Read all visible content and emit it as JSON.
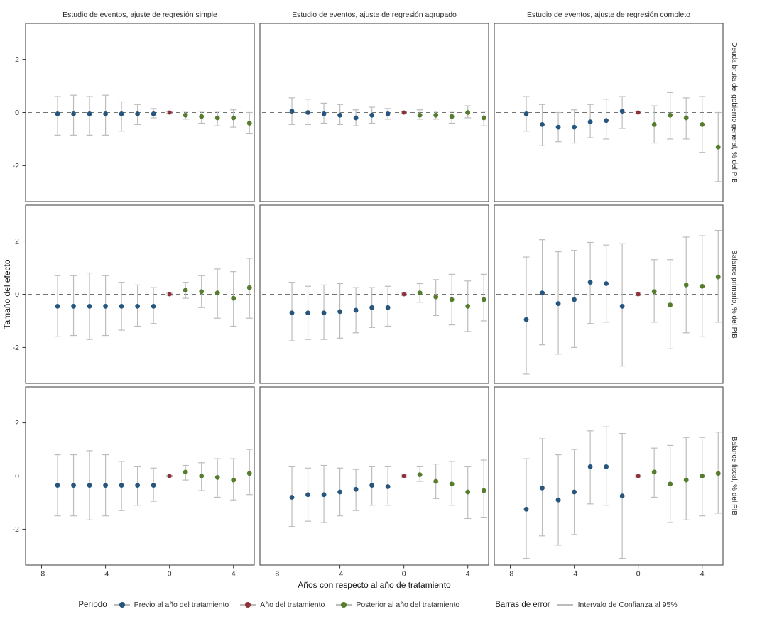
{
  "figure": {
    "y_axis_label": "Tamaño del efecto",
    "x_axis_label": "Años con respecto al año de tratamiento",
    "col_titles": [
      "Estudio de eventos, ajuste de regresión simple",
      "Estudio de eventos, ajuste de regresión agrupado",
      "Estudio de eventos, ajuste de regresión completo"
    ],
    "row_labels": [
      "Deuda bruta del gobierno general, % del PIB",
      "Balance primario, % del PIB",
      "Balance fiscal, % del PIB"
    ],
    "x_ticks": [
      -8,
      -4,
      0,
      4
    ],
    "y_ticks": [
      -2,
      0,
      2
    ]
  },
  "legend": {
    "period_title": "Período",
    "items": [
      {
        "label": "Previo al año del tratamiento",
        "color": "#26567e"
      },
      {
        "label": "Año del tratamiento",
        "color": "#8f3138"
      },
      {
        "label": "Posterior al año del tratamiento",
        "color": "#567d2e"
      }
    ],
    "errorbar_title": "Barras de error",
    "errorbar_label": "Intervalo de Confianza al 95%",
    "errorbar_color": "#bcbcbc"
  },
  "colors": {
    "previo": "#26567e",
    "tratamiento": "#8f3138",
    "posterior": "#567d2e",
    "errorbar": "#bcbcbc",
    "zero_line": "#737373",
    "panel_border": "#4a4a4a",
    "tick_text": "#333333",
    "title_text": "#2b2b2b"
  },
  "chart_data": {
    "type": "scatter",
    "subtype": "event-study point estimates with 95% CI error bars",
    "x": [
      -7,
      -6,
      -5,
      -4,
      -3,
      -2,
      -1,
      0,
      1,
      2,
      3,
      4,
      5
    ],
    "xlim": [
      -9.0,
      5.3
    ],
    "ylim": [
      -3.35,
      3.35
    ],
    "x_ticks": [
      -8,
      -4,
      0,
      4
    ],
    "y_ticks": [
      -2,
      0,
      2
    ],
    "xlabel": "Años con respecto al año de tratamiento",
    "ylabel": "Tamaño del efecto",
    "legend_position": "bottom",
    "grid": false,
    "panels": [
      {
        "row": 0,
        "col": 0,
        "row_label": "Deuda bruta del gobierno general, % del PIB",
        "col_title": "Estudio de eventos, ajuste de regresión simple",
        "estimates": [
          -0.05,
          -0.05,
          -0.05,
          -0.05,
          -0.05,
          -0.05,
          -0.05,
          0,
          -0.1,
          -0.15,
          -0.2,
          -0.2,
          -0.4
        ],
        "ci_low": [
          -0.85,
          -0.85,
          -0.85,
          -0.85,
          -0.7,
          -0.45,
          -0.2,
          -0.03,
          -0.25,
          -0.4,
          -0.5,
          -0.55,
          -0.8
        ],
        "ci_high": [
          0.6,
          0.65,
          0.6,
          0.65,
          0.4,
          0.3,
          0.15,
          0.03,
          0.05,
          0.05,
          0.05,
          0.1,
          0.0
        ]
      },
      {
        "row": 0,
        "col": 1,
        "row_label": "Deuda bruta del gobierno general, % del PIB",
        "col_title": "Estudio de eventos, ajuste de regresión agrupado",
        "estimates": [
          0.05,
          0.0,
          -0.05,
          -0.1,
          -0.2,
          -0.1,
          -0.05,
          0,
          -0.1,
          -0.1,
          -0.15,
          0.0,
          -0.2
        ],
        "ci_low": [
          -0.45,
          -0.45,
          -0.4,
          -0.45,
          -0.5,
          -0.4,
          -0.25,
          -0.03,
          -0.25,
          -0.25,
          -0.4,
          -0.2,
          -0.5
        ],
        "ci_high": [
          0.55,
          0.5,
          0.35,
          0.3,
          0.1,
          0.2,
          0.15,
          0.03,
          0.1,
          0.05,
          0.05,
          0.25,
          0.05
        ]
      },
      {
        "row": 0,
        "col": 2,
        "row_label": "Deuda bruta del gobierno general, % del PIB",
        "col_title": "Estudio de eventos, ajuste de regresión completo",
        "estimates": [
          -0.05,
          -0.45,
          -0.55,
          -0.55,
          -0.35,
          -0.3,
          0.05,
          0,
          -0.45,
          -0.1,
          -0.2,
          -0.45,
          -1.3
        ],
        "ci_low": [
          -0.7,
          -1.25,
          -1.1,
          -1.15,
          -0.95,
          -1.0,
          -0.6,
          -0.04,
          -1.15,
          -1.0,
          -1.0,
          -1.5,
          -2.6
        ],
        "ci_high": [
          0.6,
          0.3,
          0.0,
          0.1,
          0.3,
          0.5,
          0.6,
          0.04,
          0.25,
          0.75,
          0.55,
          0.6,
          0.0
        ]
      },
      {
        "row": 1,
        "col": 0,
        "row_label": "Balance primario, % del PIB",
        "col_title": "Estudio de eventos, ajuste de regresión simple",
        "estimates": [
          -0.45,
          -0.45,
          -0.45,
          -0.45,
          -0.45,
          -0.45,
          -0.45,
          0,
          0.15,
          0.1,
          0.05,
          -0.15,
          0.25
        ],
        "ci_low": [
          -1.6,
          -1.55,
          -1.7,
          -1.55,
          -1.35,
          -1.2,
          -1.1,
          -0.04,
          -0.15,
          -0.5,
          -0.9,
          -1.2,
          -0.9
        ],
        "ci_high": [
          0.7,
          0.7,
          0.8,
          0.7,
          0.45,
          0.35,
          0.25,
          0.04,
          0.45,
          0.7,
          0.95,
          0.85,
          1.35
        ]
      },
      {
        "row": 1,
        "col": 1,
        "row_label": "Balance primario, % del PIB",
        "col_title": "Estudio de eventos, ajuste de regresión agrupado",
        "estimates": [
          -0.7,
          -0.7,
          -0.7,
          -0.65,
          -0.6,
          -0.5,
          -0.5,
          0,
          0.05,
          -0.1,
          -0.2,
          -0.45,
          -0.2
        ],
        "ci_low": [
          -1.75,
          -1.7,
          -1.7,
          -1.65,
          -1.45,
          -1.25,
          -1.2,
          -0.04,
          -0.3,
          -0.8,
          -1.15,
          -1.4,
          -1.0
        ],
        "ci_high": [
          0.45,
          0.3,
          0.35,
          0.4,
          0.25,
          0.25,
          0.3,
          0.04,
          0.4,
          0.55,
          0.75,
          0.5,
          0.75
        ]
      },
      {
        "row": 1,
        "col": 2,
        "row_label": "Balance primario, % del PIB",
        "col_title": "Estudio de eventos, ajuste de regresión completo",
        "estimates": [
          -0.95,
          0.05,
          -0.35,
          -0.2,
          0.45,
          0.4,
          -0.45,
          0,
          0.1,
          -0.4,
          0.35,
          0.3,
          0.65
        ],
        "ci_low": [
          -3.0,
          -1.9,
          -2.25,
          -2.0,
          -1.1,
          -1.05,
          -2.7,
          -0.05,
          -1.05,
          -2.05,
          -1.45,
          -1.6,
          -1.05
        ],
        "ci_high": [
          1.4,
          2.05,
          1.6,
          1.65,
          1.95,
          1.85,
          1.9,
          0.05,
          1.3,
          1.3,
          2.15,
          2.2,
          2.4
        ]
      },
      {
        "row": 2,
        "col": 0,
        "row_label": "Balance fiscal, % del PIB",
        "col_title": "Estudio de eventos, ajuste de regresión simple",
        "estimates": [
          -0.35,
          -0.35,
          -0.35,
          -0.35,
          -0.35,
          -0.35,
          -0.35,
          0,
          0.15,
          0.0,
          -0.05,
          -0.15,
          0.1
        ],
        "ci_low": [
          -1.5,
          -1.5,
          -1.65,
          -1.5,
          -1.3,
          -1.1,
          -0.95,
          -0.03,
          -0.15,
          -0.55,
          -0.8,
          -0.9,
          -0.7
        ],
        "ci_high": [
          0.8,
          0.8,
          0.95,
          0.8,
          0.55,
          0.35,
          0.3,
          0.03,
          0.4,
          0.5,
          0.65,
          0.65,
          1.0
        ]
      },
      {
        "row": 2,
        "col": 1,
        "row_label": "Balance fiscal, % del PIB",
        "col_title": "Estudio de eventos, ajuste de regresión agrupado",
        "estimates": [
          -0.8,
          -0.7,
          -0.7,
          -0.6,
          -0.5,
          -0.35,
          -0.4,
          0,
          0.05,
          -0.2,
          -0.3,
          -0.6,
          -0.55
        ],
        "ci_low": [
          -1.9,
          -1.7,
          -1.75,
          -1.5,
          -1.3,
          -1.1,
          -1.1,
          -0.04,
          -0.2,
          -0.85,
          -1.1,
          -1.6,
          -1.55
        ],
        "ci_high": [
          0.35,
          0.3,
          0.4,
          0.3,
          0.25,
          0.35,
          0.35,
          0.04,
          0.35,
          0.45,
          0.55,
          0.35,
          0.6
        ]
      },
      {
        "row": 2,
        "col": 2,
        "row_label": "Balance fiscal, % del PIB",
        "col_title": "Estudio de eventos, ajuste de regresión completo",
        "estimates": [
          -1.25,
          -0.45,
          -0.9,
          -0.6,
          0.35,
          0.35,
          -0.75,
          0,
          0.15,
          -0.3,
          -0.15,
          0.0,
          0.1
        ],
        "ci_low": [
          -3.1,
          -2.25,
          -2.6,
          -2.2,
          -1.05,
          -1.1,
          -3.1,
          -0.04,
          -0.8,
          -1.75,
          -1.65,
          -1.5,
          -1.4
        ],
        "ci_high": [
          0.65,
          1.4,
          0.8,
          1.0,
          1.7,
          1.85,
          1.6,
          0.04,
          1.05,
          1.15,
          1.45,
          1.45,
          1.65
        ]
      }
    ]
  }
}
